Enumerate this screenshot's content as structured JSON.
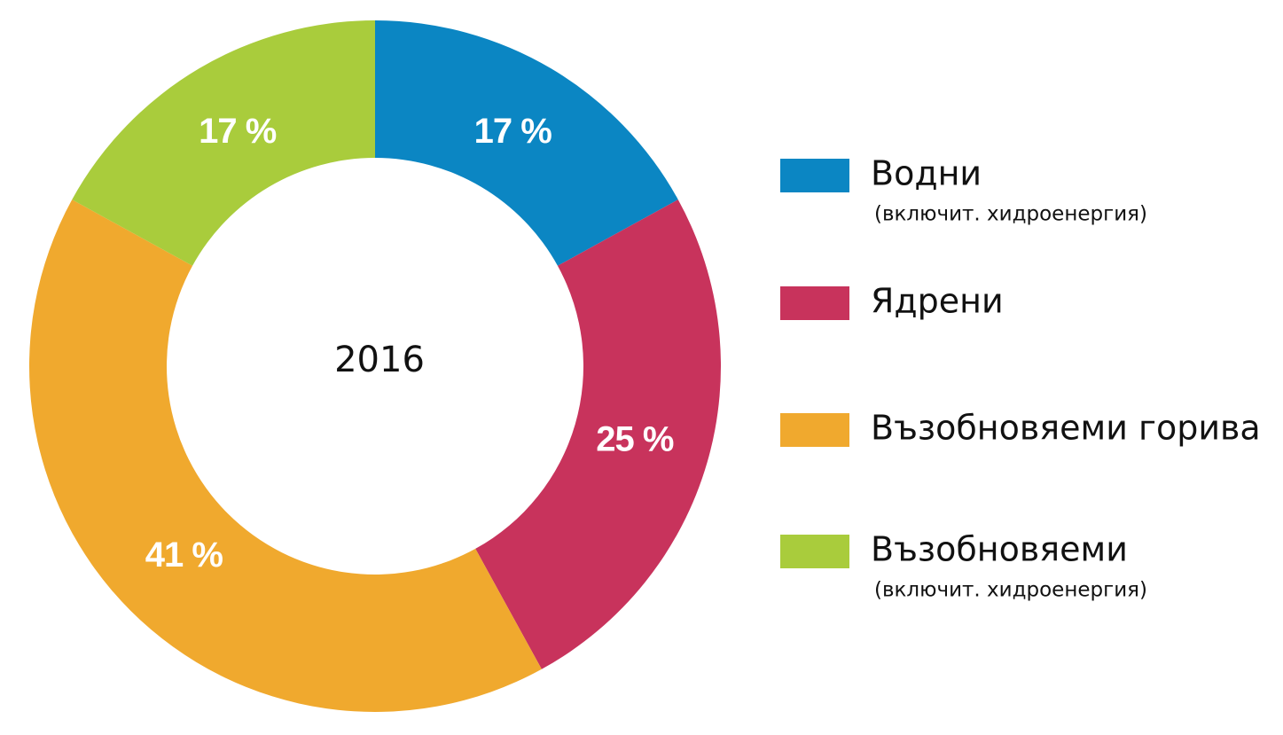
{
  "chart_data": {
    "type": "donut",
    "center_label": "2016",
    "categories": [
      "Водни",
      "Ядрени",
      "Възобновяеми горива",
      "Възобновяеми"
    ],
    "category_notes": [
      "(включит. хидроенергия)",
      null,
      null,
      "(включит. хидроенергия)"
    ],
    "values": [
      17,
      25,
      41,
      17
    ],
    "value_labels": [
      "17 %",
      "25 %",
      "41 %",
      "17 %"
    ],
    "colors": [
      "#0b86c3",
      "#c8335c",
      "#f0a92e",
      "#a9cc3c"
    ]
  }
}
